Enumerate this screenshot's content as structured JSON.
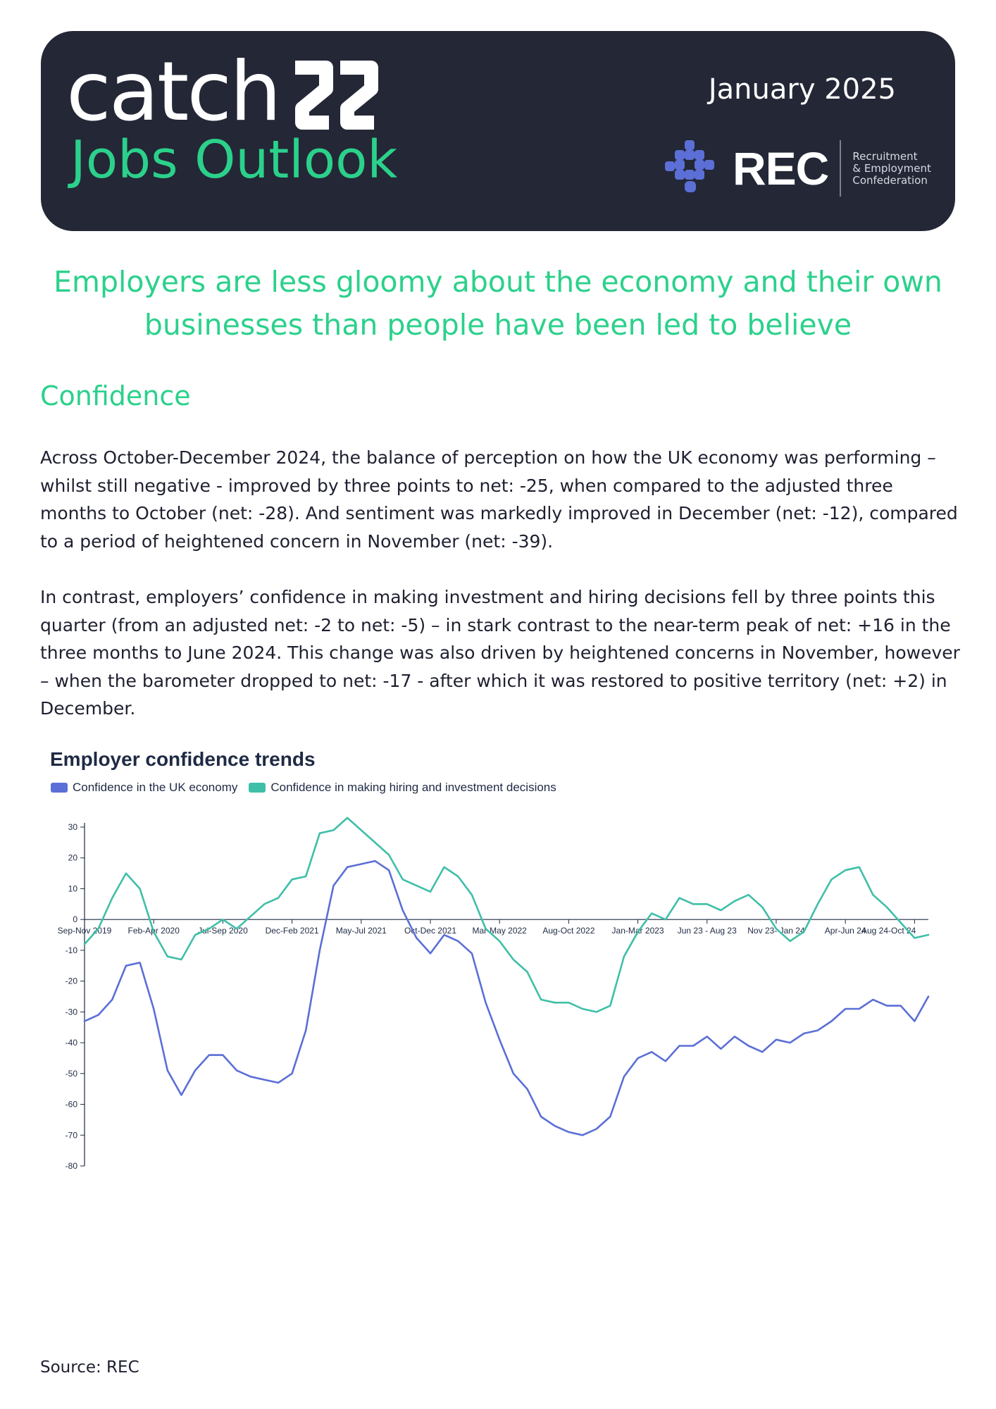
{
  "header": {
    "brand": "catch",
    "product": "Jobs Outlook",
    "issue_date": "January 2025",
    "org_abbr": "REC",
    "org_full_lines": [
      "Recruitment",
      "& Employment",
      "Confederation"
    ],
    "brand_mark_icon": "catch-22-mark-icon",
    "org_logo_icon": "rec-cross-logo-icon"
  },
  "headline": "Employers are less gloomy about the economy and their own businesses than people have been led to believe",
  "section_title": "Confidence",
  "paragraphs": [
    "Across October-December 2024, the balance of perception on how the UK economy was performing – whilst still negative - improved by three points to net: -25, when compared to the adjusted three months to October (net: -28). And sentiment was markedly improved in December (net: -12), compared to a period of heightened concern in November (net: -39).",
    "In contrast, employers’ confidence in making investment and hiring decisions fell by three points this quarter (from an adjusted net: -2 to net: -5) – in stark contrast to the near-term peak of net: +16 in the three months to June 2024. This change was also driven by heightened concerns in November, however – when the barometer dropped to net: -17 - after which it was restored to positive territory (net: +2) in December."
  ],
  "source": "Source: REC",
  "colors": {
    "banner": "#242736",
    "accent_green": "#2bd18b",
    "economy": "#5b6fd6",
    "hiring": "#3fbfa8"
  },
  "chart_data": {
    "type": "line",
    "title": "Employer confidence trends",
    "xlabel": "",
    "ylabel": "",
    "ylim": [
      -80,
      30
    ],
    "yticks": [
      30,
      20,
      10,
      0,
      -10,
      -20,
      -30,
      -40,
      -50,
      -60,
      -70,
      -80
    ],
    "x_tick_labels": [
      "Sep-Nov 2019",
      "Feb-Apr 2020",
      "Jul-Sep 2020",
      "Dec-Feb 2021",
      "May-Jul 2021",
      "Oct-Dec 2021",
      "Mar-May 2022",
      "Aug-Oct 2022",
      "Jan-Mar 2023",
      "Jun 23 - Aug 23",
      "Nov 23- Jan 24",
      "Apr-Jun 24",
      "Aug 24-Oct 24"
    ],
    "grid": false,
    "legend_position": "top-left",
    "series": [
      {
        "name": "Confidence in the UK economy",
        "color": "#5b6fd6",
        "values": [
          -33,
          -31,
          -26,
          -15,
          -14,
          -29,
          -49,
          -57,
          -49,
          -44,
          -44,
          -49,
          -51,
          -52,
          -53,
          -50,
          -36,
          -10,
          11,
          17,
          18,
          19,
          16,
          3,
          -6,
          -11,
          -5,
          -7,
          -11,
          -27,
          -39,
          -50,
          -55,
          -64,
          -67,
          -69,
          -70,
          -68,
          -64,
          -51,
          -45,
          -43,
          -46,
          -41,
          -41,
          -38,
          -42,
          -38,
          -41,
          -43,
          -39,
          -40,
          -37,
          -36,
          -33,
          -29,
          -29,
          -26,
          -28,
          -28,
          -33,
          -25
        ]
      },
      {
        "name": "Confidence in making hiring and investment decisions",
        "color": "#3fbfa8",
        "values": [
          -8,
          -3,
          7,
          15,
          10,
          -4,
          -12,
          -13,
          -5,
          -3,
          0,
          -3,
          1,
          5,
          7,
          13,
          14,
          28,
          29,
          33,
          29,
          25,
          21,
          13,
          11,
          9,
          17,
          14,
          8,
          -3,
          -7,
          -13,
          -17,
          -26,
          -27,
          -27,
          -29,
          -30,
          -28,
          -12,
          -4,
          2,
          0,
          7,
          5,
          5,
          3,
          6,
          8,
          4,
          -3,
          -7,
          -4,
          5,
          13,
          16,
          17,
          8,
          4,
          -1,
          -6,
          -5
        ]
      }
    ]
  }
}
